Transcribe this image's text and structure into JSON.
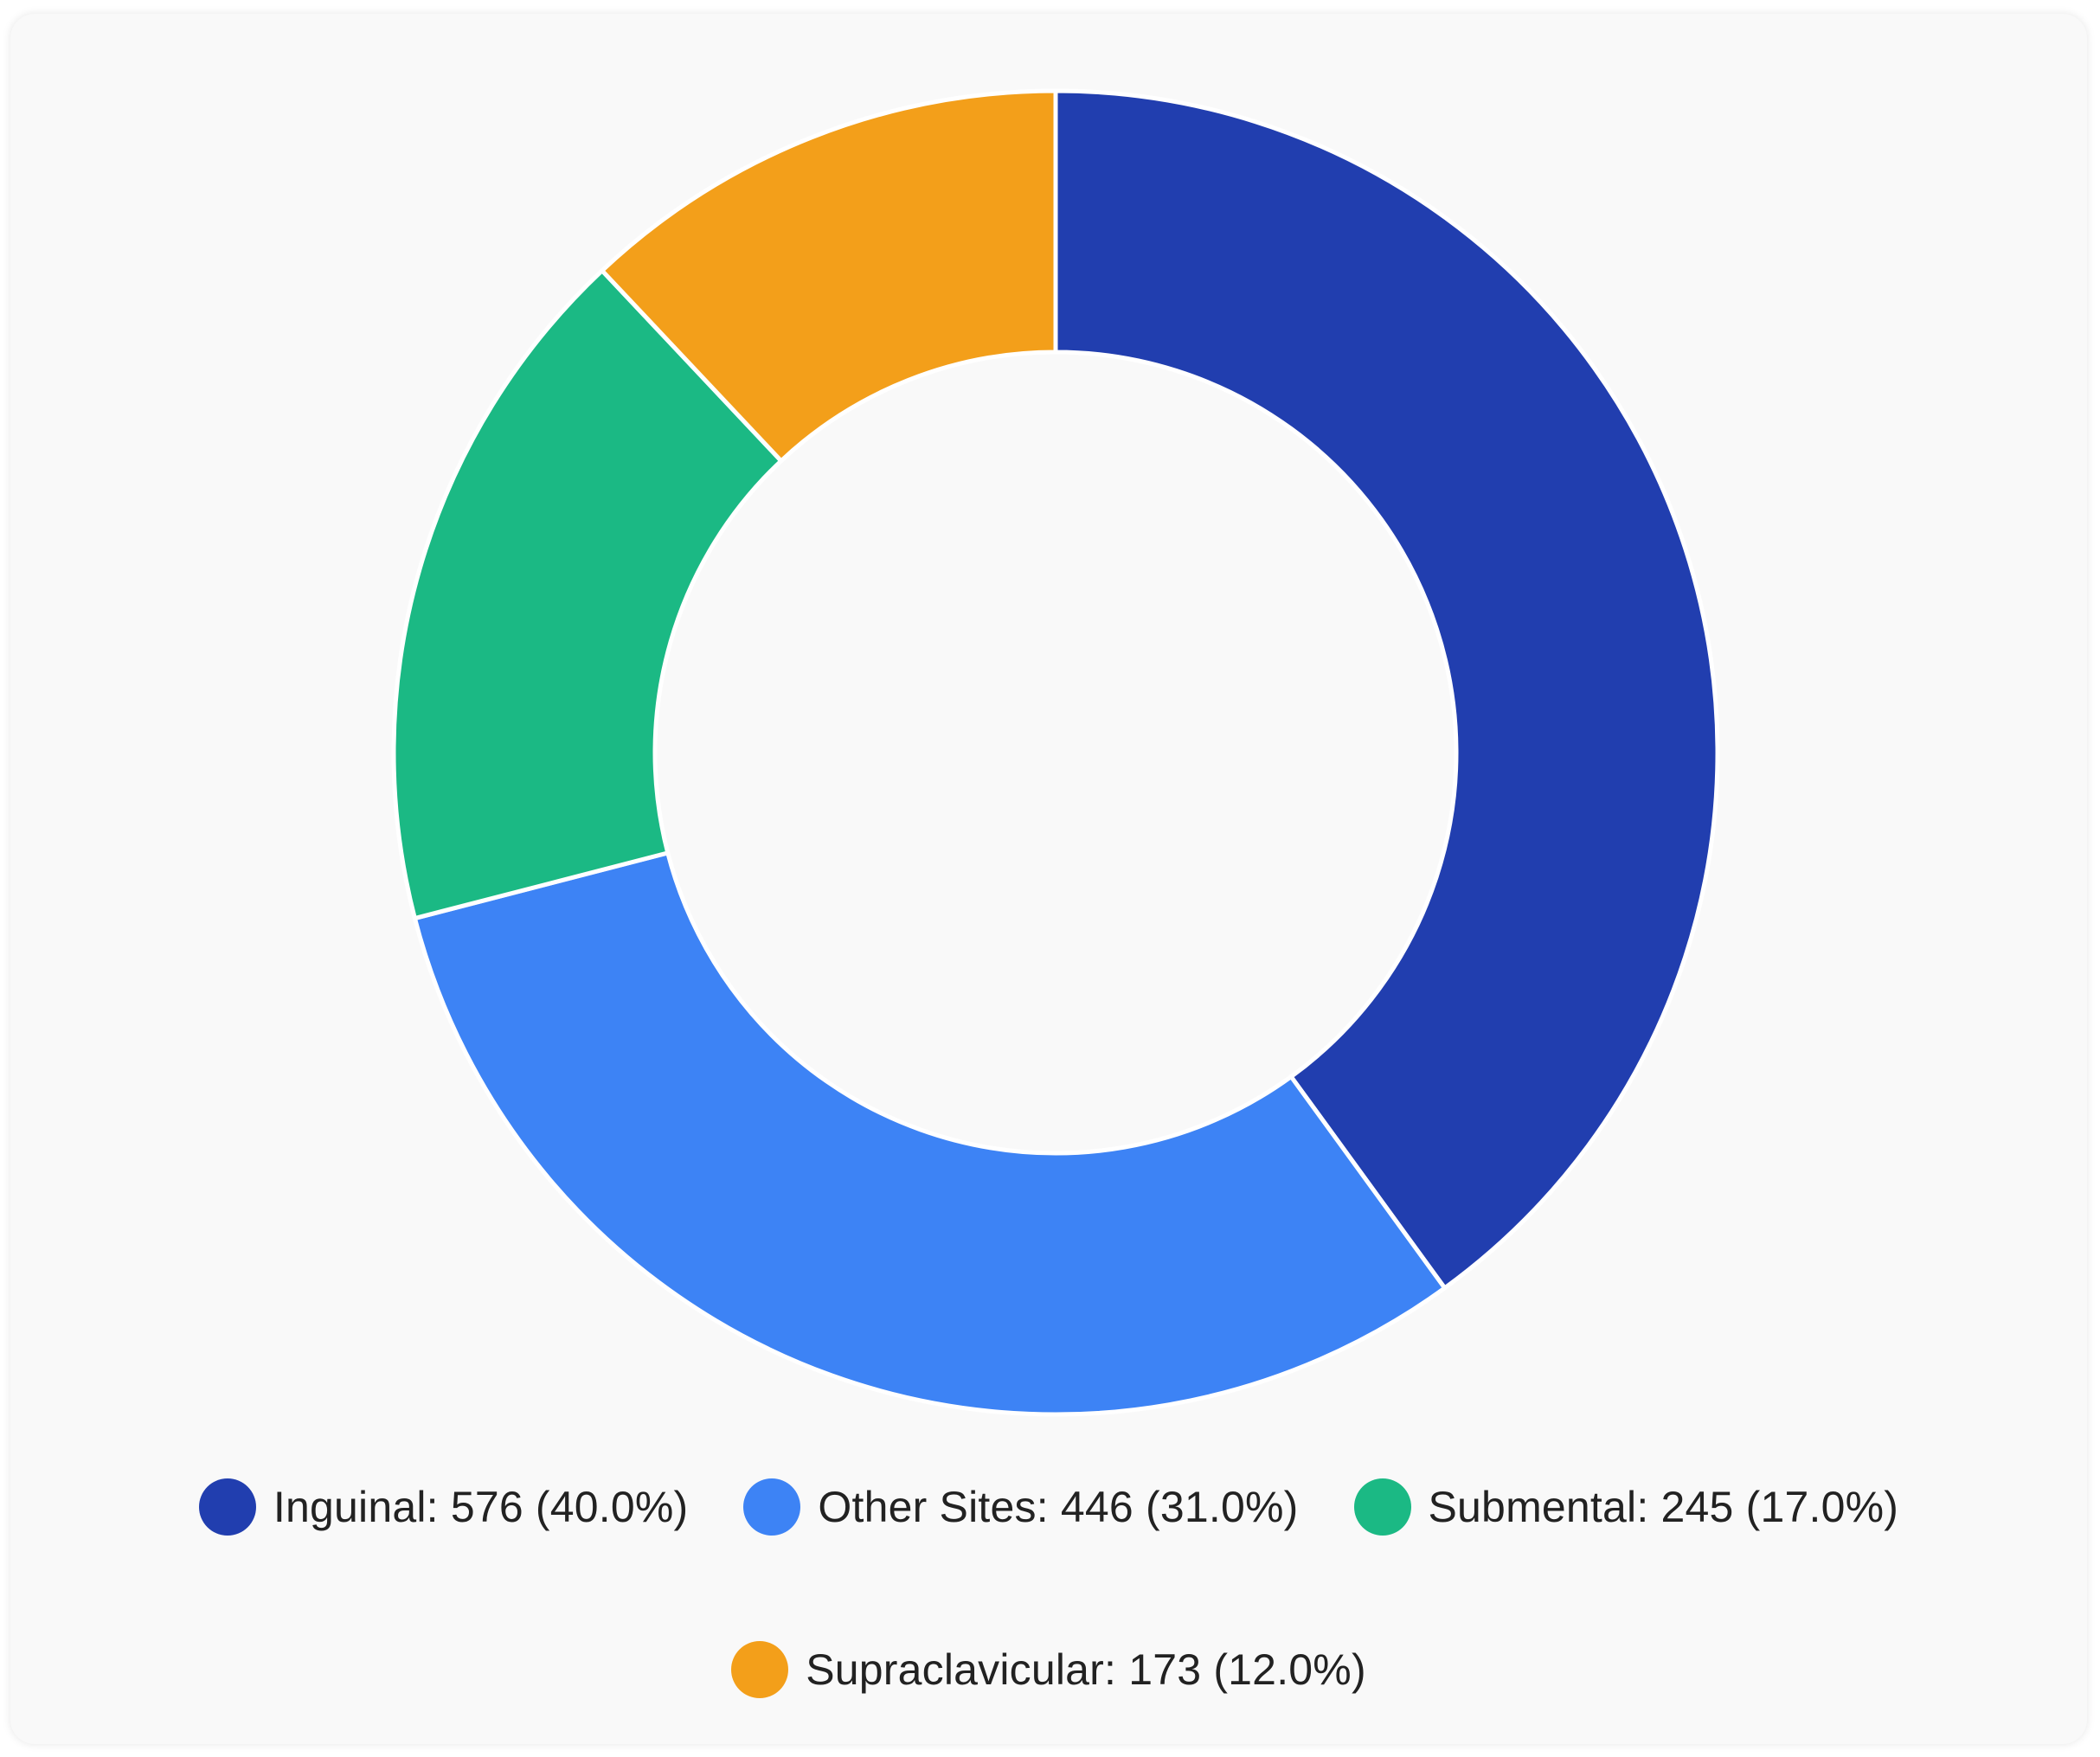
{
  "chart_data": {
    "type": "pie",
    "donut": true,
    "legend_position": "bottom",
    "start_angle_deg": 0,
    "direction": "clockwise",
    "slices": [
      {
        "label": "Inguinal",
        "value": 576,
        "percent": 40.0,
        "legend_text": "Inguinal: 576 (40.0%)",
        "color": "#213eaf"
      },
      {
        "label": "Other Sites",
        "value": 446,
        "percent": 31.0,
        "legend_text": "Other Sites: 446 (31.0%)",
        "color": "#3d83f5"
      },
      {
        "label": "Submental",
        "value": 245,
        "percent": 17.0,
        "legend_text": "Submental: 245 (17.0%)",
        "color": "#1bb984"
      },
      {
        "label": "Supraclavicular",
        "value": 173,
        "percent": 12.0,
        "legend_text": "Supraclavicular: 173 (12.0%)",
        "color": "#f39f1a"
      }
    ]
  },
  "colors": {
    "card_background": "#f9f9f9",
    "slice_border": "#ffffff",
    "legend_text": "#222222"
  }
}
